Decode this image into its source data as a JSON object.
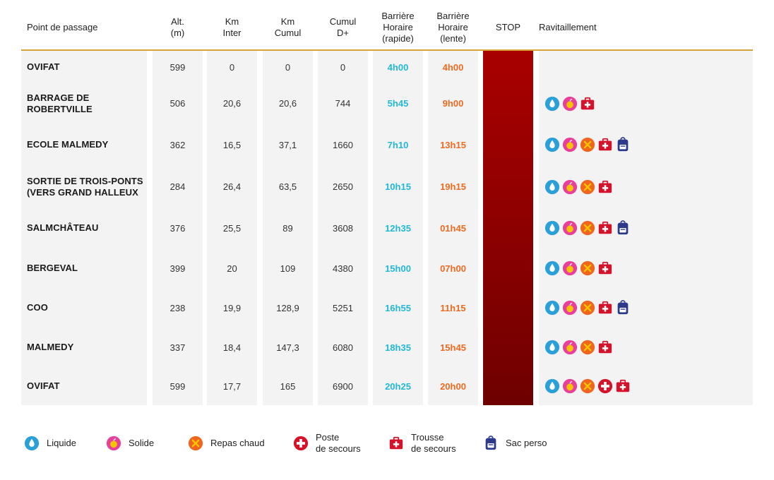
{
  "headers": {
    "name": "Point de passage",
    "alt": "Alt.\n(m)",
    "km_inter": "Km\nInter",
    "km_cumul": "Km\nCumul",
    "cumul_dplus": "Cumul\nD+",
    "barrier_fast": "Barrière\nHoraire\n(rapide)",
    "barrier_slow": "Barrière\nHoraire\n(lente)",
    "stop": "STOP",
    "supplies": "Ravitaillement"
  },
  "rows": [
    {
      "name": "OVIFAT",
      "alt": "599",
      "km_inter": "0",
      "km_cumul": "0",
      "dplus": "0",
      "fast": "4h00",
      "slow": "4h00",
      "icons": []
    },
    {
      "name": "BARRAGE DE\nROBERTVILLE",
      "alt": "506",
      "km_inter": "20,6",
      "km_cumul": "20,6",
      "dplus": "744",
      "fast": "5h45",
      "slow": "9h00",
      "icons": [
        "liquid",
        "solid",
        "kit"
      ]
    },
    {
      "name": "ECOLE MALMEDY",
      "alt": "362",
      "km_inter": "16,5",
      "km_cumul": "37,1",
      "dplus": "1660",
      "fast": "7h10",
      "slow": "13h15",
      "icons": [
        "liquid",
        "solid",
        "hot",
        "kit",
        "bag"
      ]
    },
    {
      "name": "SORTIE DE TROIS-PONTS\n(VERS GRAND HALLEUX",
      "alt": "284",
      "km_inter": "26,4",
      "km_cumul": "63,5",
      "dplus": "2650",
      "fast": "10h15",
      "slow": "19h15",
      "icons": [
        "liquid",
        "solid",
        "hot",
        "kit"
      ]
    },
    {
      "name": "SALMCHÂTEAU",
      "alt": "376",
      "km_inter": "25,5",
      "km_cumul": "89",
      "dplus": "3608",
      "fast": "12h35",
      "slow": "01h45",
      "icons": [
        "liquid",
        "solid",
        "hot",
        "kit",
        "bag"
      ]
    },
    {
      "name": "BERGEVAL",
      "alt": "399",
      "km_inter": "20",
      "km_cumul": "109",
      "dplus": "4380",
      "fast": "15h00",
      "slow": "07h00",
      "icons": [
        "liquid",
        "solid",
        "hot",
        "kit"
      ]
    },
    {
      "name": "COO",
      "alt": "238",
      "km_inter": "19,9",
      "km_cumul": "128,9",
      "dplus": "5251",
      "fast": "16h55",
      "slow": "11h15",
      "icons": [
        "liquid",
        "solid",
        "hot",
        "kit",
        "bag"
      ]
    },
    {
      "name": "MALMEDY",
      "alt": "337",
      "km_inter": "18,4",
      "km_cumul": "147,3",
      "dplus": "6080",
      "fast": "18h35",
      "slow": "15h45",
      "icons": [
        "liquid",
        "solid",
        "hot",
        "kit"
      ]
    },
    {
      "name": "OVIFAT",
      "alt": "599",
      "km_inter": "17,7",
      "km_cumul": "165",
      "dplus": "6900",
      "fast": "20h25",
      "slow": "20h00",
      "icons": [
        "liquid",
        "solid",
        "hot",
        "post",
        "kit"
      ]
    }
  ],
  "legend": [
    {
      "icon": "liquid",
      "label": "Liquide"
    },
    {
      "icon": "solid",
      "label": "Solide"
    },
    {
      "icon": "hot",
      "label": "Repas chaud"
    },
    {
      "icon": "post",
      "label": "Poste\nde secours"
    },
    {
      "icon": "kit",
      "label": "Trousse\nde secours"
    },
    {
      "icon": "bag",
      "label": "Sac perso"
    }
  ],
  "icon_names": {
    "liquid": "water-drop-icon",
    "solid": "apple-icon",
    "hot": "utensils-icon",
    "post": "first-aid-cross-icon",
    "kit": "first-aid-kit-icon",
    "bag": "backpack-icon"
  },
  "colors": {
    "fast_time": "#22b8d6",
    "slow_time": "#ee6a1f",
    "stop_column": "#a90000",
    "header_rule": "#d6a23a",
    "liquid": "#2a9fd8",
    "solid": "#e8409a",
    "hot": "#f0661f",
    "medical": "#d4122a",
    "bag": "#2c3a8c"
  }
}
